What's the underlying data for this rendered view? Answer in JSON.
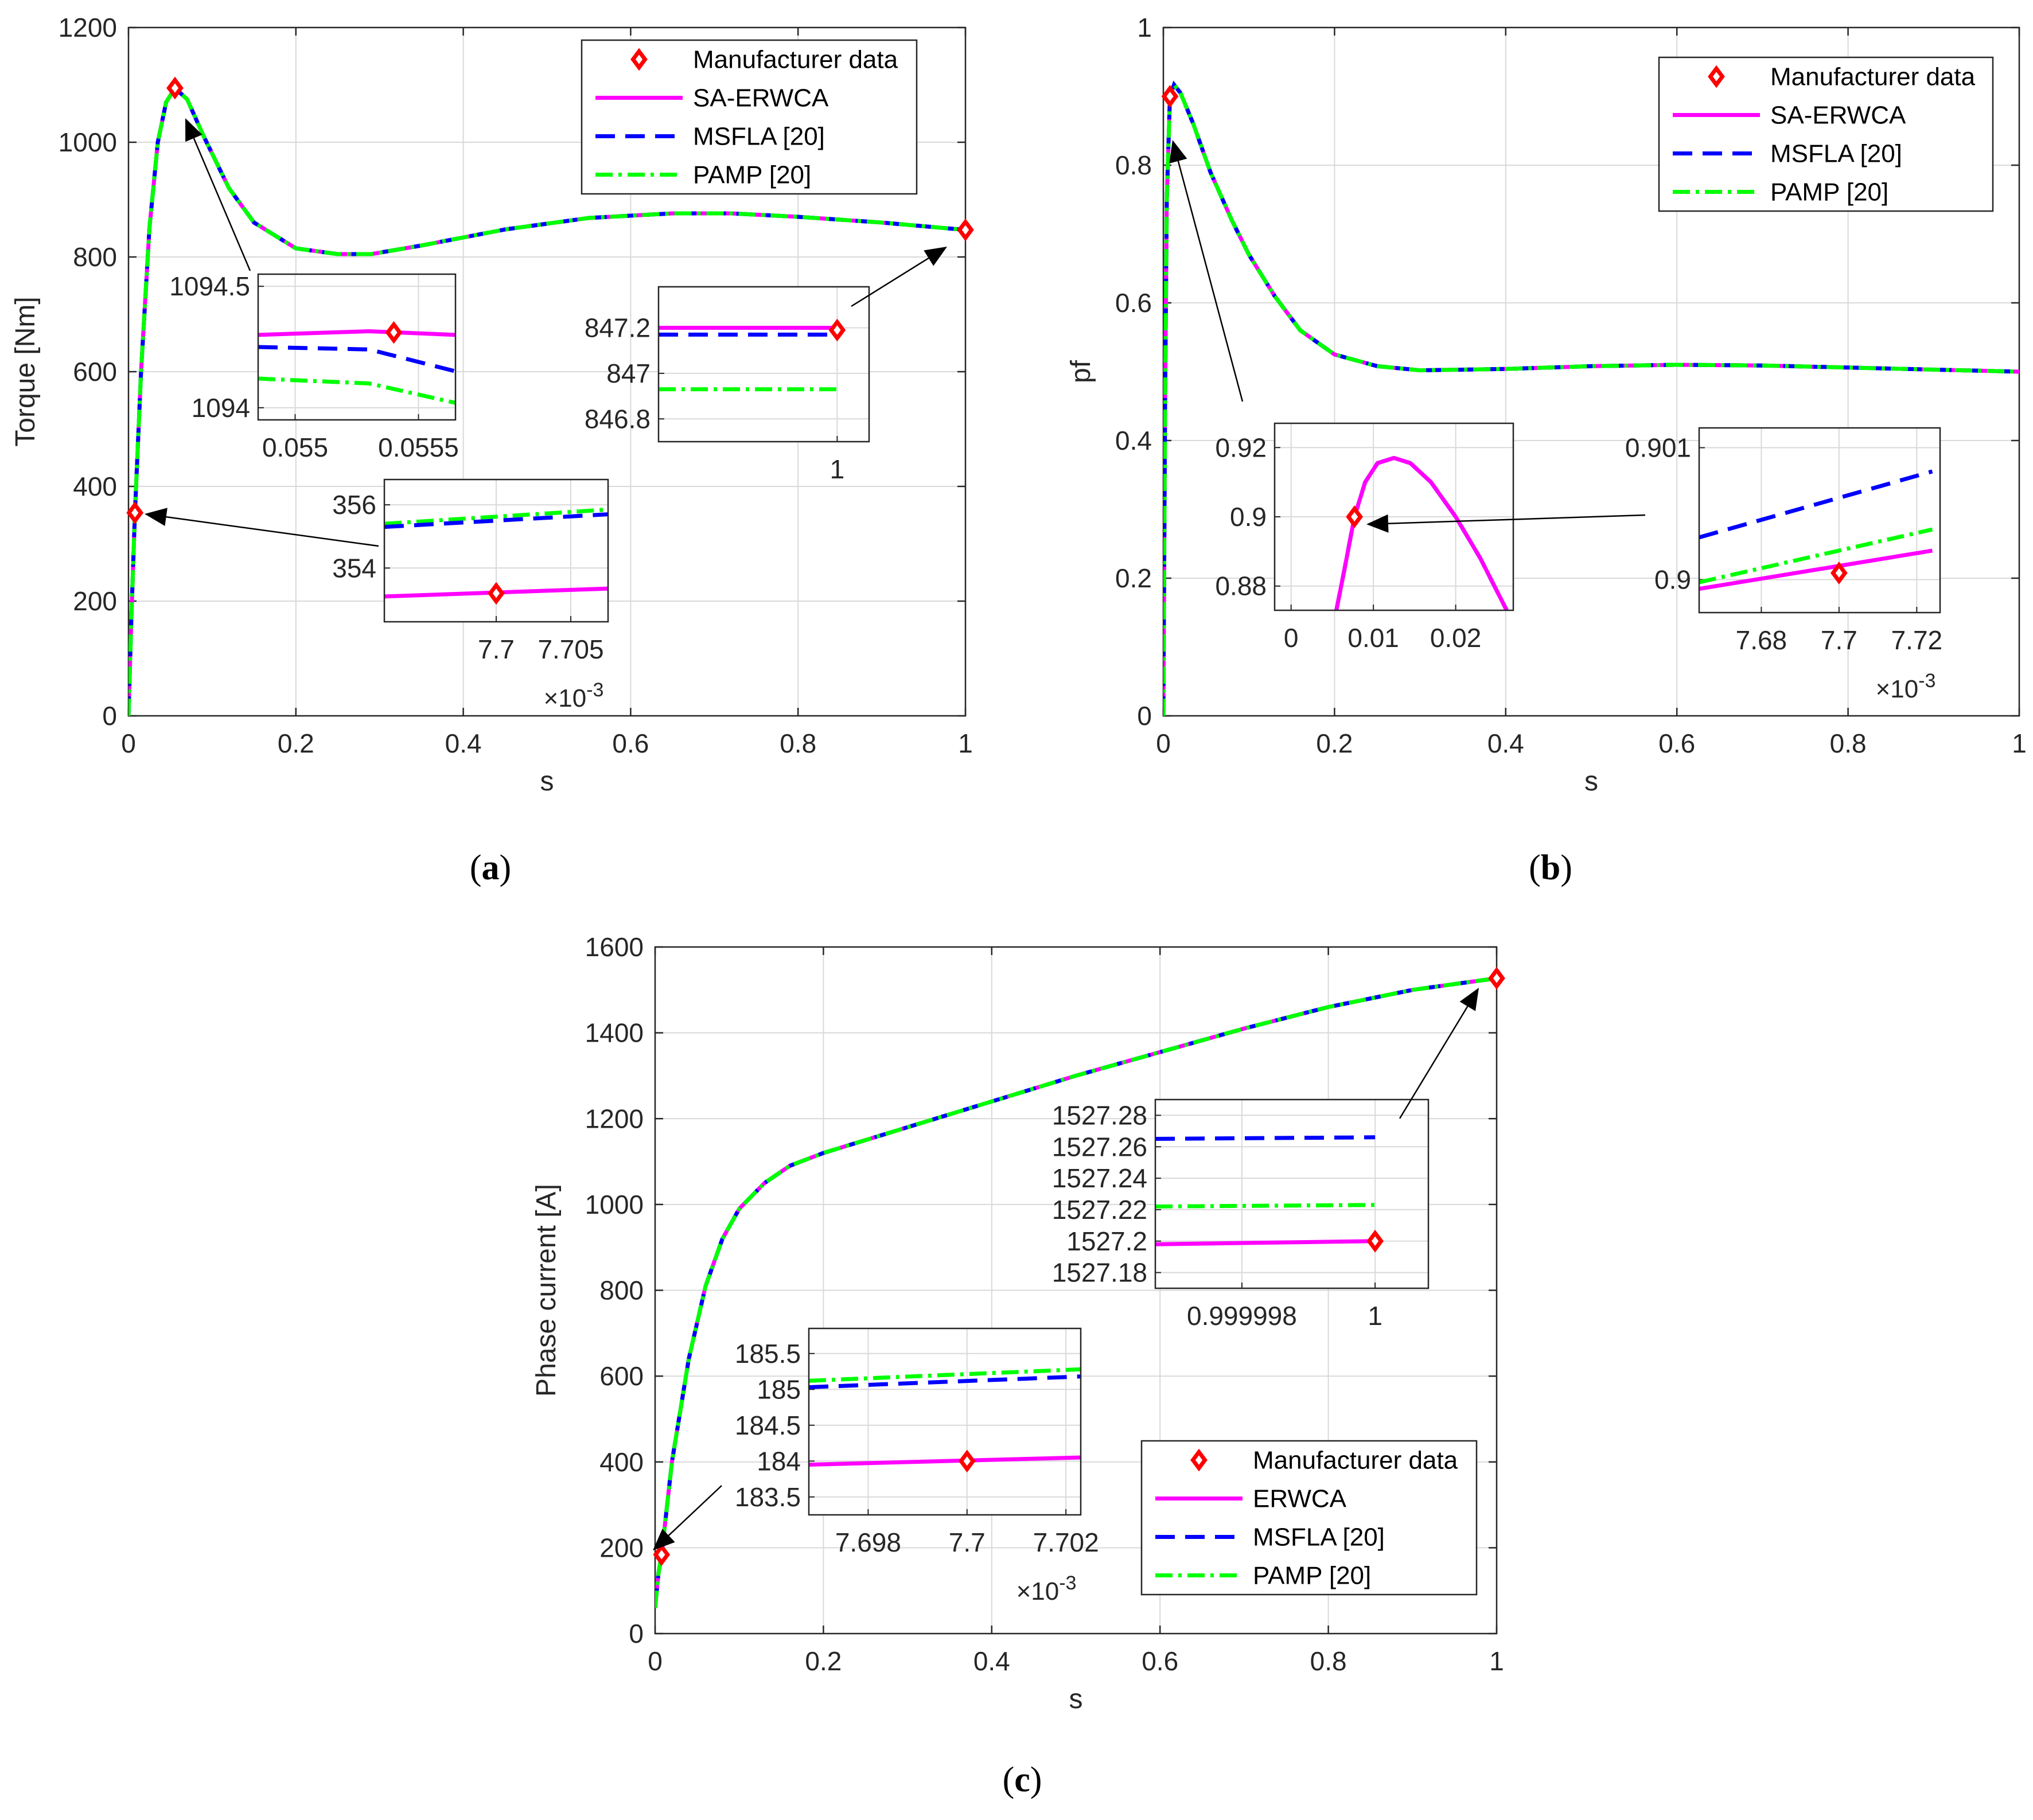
{
  "colors": {
    "manufacturer": "#ff0000",
    "sa": "#ff00ff",
    "msfla": "#0000ff",
    "pamp": "#00ff00",
    "axis": "#262626",
    "grid": "#d9d9d9"
  },
  "chart_data": [
    {
      "id": "a",
      "type": "line",
      "caption": "a",
      "xlabel": "s",
      "ylabel": "Torque [Nm]",
      "xlim": [
        0,
        1
      ],
      "ylim": [
        0,
        1200
      ],
      "xticks": [
        0,
        0.2,
        0.4,
        0.6,
        0.8,
        1
      ],
      "xtick_labels": [
        "0",
        "0.2",
        "0.4",
        "0.6",
        "0.8",
        "1"
      ],
      "yticks": [
        0,
        200,
        400,
        600,
        800,
        1000,
        1200
      ],
      "ytick_labels": [
        "0",
        "200",
        "400",
        "600",
        "800",
        "1000",
        "1200"
      ],
      "grid": true,
      "legend_position": "top-right",
      "legend": [
        "Manufacturer data",
        "SA-ERWCA",
        "MSFLA [20]",
        "PAMP [20]"
      ],
      "manufacturer_points": [
        {
          "x": 0.0077,
          "y": 354
        },
        {
          "x": 0.0555,
          "y": 1094.5
        },
        {
          "x": 1,
          "y": 847.2
        }
      ],
      "curve": {
        "x": [
          0,
          0.0035,
          0.0077,
          0.015,
          0.025,
          0.035,
          0.045,
          0.0555,
          0.07,
          0.09,
          0.12,
          0.15,
          0.2,
          0.25,
          0.29,
          0.35,
          0.45,
          0.55,
          0.65,
          0.72,
          0.8,
          0.9,
          1
        ],
        "y": [
          0,
          175,
          354,
          600,
          850,
          1000,
          1070,
          1094.5,
          1075,
          1010,
          920,
          860,
          815,
          805,
          805,
          820,
          848,
          868,
          876,
          876,
          870,
          860,
          847.2
        ]
      },
      "series": [
        {
          "name": "Manufacturer data",
          "key": "manufacturer"
        },
        {
          "name": "SA-ERWCA",
          "key": "sa"
        },
        {
          "name": "MSFLA [20]",
          "key": "msfla"
        },
        {
          "name": "PAMP [20]",
          "key": "pamp"
        }
      ],
      "insets": [
        {
          "id": "a1",
          "xlim": [
            0.05485,
            0.05565
          ],
          "ylim": [
            1093.95,
            1094.55
          ],
          "xtick_labels": [
            "0.055",
            "0.0555"
          ],
          "xticks": [
            0.055,
            0.0555
          ],
          "ytick_labels": [
            "1094",
            "1094.5"
          ],
          "yticks": [
            1094,
            1094.5
          ],
          "multiplier": "",
          "lines": {
            "sa": [
              [
                0.05485,
                1094.3
              ],
              [
                0.0553,
                1094.315
              ],
              [
                0.05565,
                1094.3
              ]
            ],
            "msfla": [
              [
                0.05485,
                1094.25
              ],
              [
                0.0553,
                1094.24
              ],
              [
                0.05565,
                1094.15
              ]
            ],
            "pamp": [
              [
                0.05485,
                1094.12
              ],
              [
                0.0553,
                1094.1
              ],
              [
                0.05565,
                1094.02
              ]
            ]
          },
          "point": [
            0.0554,
            1094.31
          ]
        },
        {
          "id": "a2",
          "xlim": [
            0.99972,
            1.00005
          ],
          "ylim": [
            846.7,
            847.38
          ],
          "xtick_labels": [
            "1"
          ],
          "xticks": [
            1
          ],
          "ytick_labels": [
            "846.8",
            "847",
            "847.2"
          ],
          "yticks": [
            846.8,
            847,
            847.2
          ],
          "multiplier": "",
          "lines": {
            "sa": [
              [
                0.99972,
                847.2
              ],
              [
                1,
                847.2
              ]
            ],
            "msfla": [
              [
                0.99972,
                847.17
              ],
              [
                1,
                847.17
              ]
            ],
            "pamp": [
              [
                0.99972,
                846.93
              ],
              [
                1,
                846.93
              ]
            ]
          },
          "point": [
            1,
            847.19
          ]
        },
        {
          "id": "a3",
          "xlim": [
            0.0076925,
            0.0077075
          ],
          "ylim": [
            352.3,
            356.8
          ],
          "xtick_labels": [
            "7.7",
            "7.705"
          ],
          "xticks": [
            0.0077,
            0.007705
          ],
          "ytick_labels": [
            "354",
            "356"
          ],
          "yticks": [
            354,
            356
          ],
          "multiplier": "×10⁻³",
          "lines": {
            "sa": [
              [
                0.0076925,
                353.1
              ],
              [
                0.0077075,
                353.35
              ]
            ],
            "msfla": [
              [
                0.0076925,
                355.3
              ],
              [
                0.0077075,
                355.7
              ]
            ],
            "pamp": [
              [
                0.0076925,
                355.4
              ],
              [
                0.0077075,
                355.85
              ]
            ]
          },
          "point": [
            0.0077,
            353.2
          ]
        }
      ]
    },
    {
      "id": "b",
      "type": "line",
      "caption": "b",
      "xlabel": "s",
      "ylabel": "pf",
      "xlim": [
        0,
        1
      ],
      "ylim": [
        0,
        1
      ],
      "xticks": [
        0,
        0.2,
        0.4,
        0.6,
        0.8,
        1
      ],
      "xtick_labels": [
        "0",
        "0.2",
        "0.4",
        "0.6",
        "0.8",
        "1"
      ],
      "yticks": [
        0,
        0.2,
        0.4,
        0.6,
        0.8,
        1
      ],
      "ytick_labels": [
        "0",
        "0.2",
        "0.4",
        "0.6",
        "0.8",
        "1"
      ],
      "grid": true,
      "legend_position": "top-right",
      "legend": [
        "Manufacturer data",
        "SA-ERWCA",
        "MSFLA [20]",
        "PAMP [20]"
      ],
      "manufacturer_points": [
        {
          "x": 0.0077,
          "y": 0.9
        }
      ],
      "curve": {
        "x": [
          0,
          0.002,
          0.004,
          0.0077,
          0.0125,
          0.02,
          0.035,
          0.055,
          0.08,
          0.1,
          0.13,
          0.16,
          0.2,
          0.25,
          0.3,
          0.4,
          0.5,
          0.6,
          0.7,
          0.8,
          0.9,
          1
        ],
        "y": [
          0,
          0.45,
          0.75,
          0.9,
          0.917,
          0.905,
          0.86,
          0.79,
          0.72,
          0.67,
          0.61,
          0.56,
          0.525,
          0.508,
          0.502,
          0.504,
          0.508,
          0.51,
          0.509,
          0.506,
          0.503,
          0.5
        ]
      },
      "series": [
        {
          "name": "Manufacturer data",
          "key": "manufacturer"
        },
        {
          "name": "SA-ERWCA",
          "key": "sa"
        },
        {
          "name": "MSFLA [20]",
          "key": "msfla"
        },
        {
          "name": "PAMP [20]",
          "key": "pamp"
        }
      ],
      "insets": [
        {
          "id": "b1",
          "xlim": [
            -0.002,
            0.027
          ],
          "ylim": [
            0.873,
            0.927
          ],
          "xtick_labels": [
            "0",
            "0.01",
            "0.02"
          ],
          "xticks": [
            0,
            0.01,
            0.02
          ],
          "ytick_labels": [
            "0.88",
            "0.9",
            "0.92"
          ],
          "yticks": [
            0.88,
            0.9,
            0.92
          ],
          "multiplier": "",
          "lines": {
            "sa": [
              [
                0.0055,
                0.873
              ],
              [
                0.0065,
                0.885
              ],
              [
                0.0077,
                0.9
              ],
              [
                0.009,
                0.91
              ],
              [
                0.0105,
                0.9155
              ],
              [
                0.0125,
                0.917
              ],
              [
                0.0145,
                0.9155
              ],
              [
                0.017,
                0.91
              ],
              [
                0.02,
                0.9
              ],
              [
                0.023,
                0.888
              ],
              [
                0.0262,
                0.873
              ]
            ],
            "msfla": [
              [
                0.0055,
                0.873
              ],
              [
                0.0065,
                0.885
              ],
              [
                0.0077,
                0.9
              ],
              [
                0.009,
                0.91
              ],
              [
                0.0105,
                0.9155
              ],
              [
                0.0125,
                0.917
              ],
              [
                0.0145,
                0.9155
              ],
              [
                0.017,
                0.91
              ],
              [
                0.02,
                0.9
              ],
              [
                0.023,
                0.888
              ],
              [
                0.0262,
                0.873
              ]
            ],
            "pamp": [
              [
                0.0055,
                0.873
              ],
              [
                0.0065,
                0.885
              ],
              [
                0.0077,
                0.9
              ],
              [
                0.009,
                0.91
              ],
              [
                0.0105,
                0.9155
              ],
              [
                0.0125,
                0.917
              ],
              [
                0.0145,
                0.9155
              ],
              [
                0.017,
                0.91
              ],
              [
                0.02,
                0.9
              ],
              [
                0.023,
                0.888
              ],
              [
                0.0262,
                0.873
              ]
            ]
          },
          "point": [
            0.0077,
            0.9
          ]
        },
        {
          "id": "b2",
          "xlim": [
            0.007664,
            0.007726
          ],
          "ylim": [
            0.89975,
            0.90115
          ],
          "xtick_labels": [
            "7.68",
            "7.7",
            "7.72"
          ],
          "xticks": [
            0.00768,
            0.0077,
            0.00772
          ],
          "ytick_labels": [
            "0.9",
            "0.901"
          ],
          "yticks": [
            0.9,
            0.901
          ],
          "multiplier": "×10⁻³",
          "lines": {
            "sa": [
              [
                0.007664,
                0.89993
              ],
              [
                0.007724,
                0.90022
              ]
            ],
            "msfla": [
              [
                0.007664,
                0.90032
              ],
              [
                0.007724,
                0.90082
              ]
            ],
            "pamp": [
              [
                0.007664,
                0.89998
              ],
              [
                0.007724,
                0.90038
              ]
            ]
          },
          "point": [
            0.0077,
            0.90005
          ]
        }
      ]
    },
    {
      "id": "c",
      "type": "line",
      "caption": "c",
      "xlabel": "s",
      "ylabel": "Phase current [A]",
      "xlim": [
        0,
        1
      ],
      "ylim": [
        0,
        1600
      ],
      "xticks": [
        0,
        0.2,
        0.4,
        0.6,
        0.8,
        1
      ],
      "xtick_labels": [
        "0",
        "0.2",
        "0.4",
        "0.6",
        "0.8",
        "1"
      ],
      "yticks": [
        0,
        200,
        400,
        600,
        800,
        1000,
        1200,
        1400,
        1600
      ],
      "ytick_labels": [
        "0",
        "200",
        "400",
        "600",
        "800",
        "1000",
        "1200",
        "1400",
        "1600"
      ],
      "grid": true,
      "legend_position": "bottom-right",
      "legend": [
        "Manufacturer data",
        "ERWCA",
        "MSFLA [20]",
        "PAMP [20]"
      ],
      "manufacturer_points": [
        {
          "x": 0.0077,
          "y": 184
        },
        {
          "x": 1,
          "y": 1527.2
        }
      ],
      "curve": {
        "x": [
          0,
          0.004,
          0.0077,
          0.02,
          0.04,
          0.06,
          0.08,
          0.1,
          0.13,
          0.16,
          0.2,
          0.3,
          0.4,
          0.5,
          0.6,
          0.7,
          0.8,
          0.9,
          1
        ],
        "y": [
          60,
          140,
          184,
          400,
          640,
          810,
          920,
          990,
          1050,
          1090,
          1120,
          1180,
          1240,
          1300,
          1355,
          1410,
          1460,
          1500,
          1527.2
        ]
      },
      "series": [
        {
          "name": "Manufacturer data",
          "key": "manufacturer"
        },
        {
          "name": "ERWCA",
          "key": "sa"
        },
        {
          "name": "MSFLA [20]",
          "key": "msfla"
        },
        {
          "name": "PAMP [20]",
          "key": "pamp"
        }
      ],
      "insets": [
        {
          "id": "c1",
          "xlim": [
            0.9999967,
            1.0000008
          ],
          "ylim": [
            1527.17,
            1527.29
          ],
          "xtick_labels": [
            "0.999998",
            "1"
          ],
          "xticks": [
            0.999998,
            1
          ],
          "ytick_labels": [
            "1527.18",
            "1527.2",
            "1527.22",
            "1527.24",
            "1527.26",
            "1527.28"
          ],
          "yticks": [
            1527.18,
            1527.2,
            1527.22,
            1527.24,
            1527.26,
            1527.28
          ],
          "multiplier": "",
          "lines": {
            "sa": [
              [
                0.9999967,
                1527.198
              ],
              [
                1,
                1527.2
              ]
            ],
            "msfla": [
              [
                0.9999967,
                1527.265
              ],
              [
                1,
                1527.266
              ]
            ],
            "pamp": [
              [
                0.9999967,
                1527.222
              ],
              [
                1,
                1527.223
              ]
            ]
          },
          "point": [
            1,
            1527.2
          ]
        },
        {
          "id": "c2",
          "xlim": [
            0.0076968,
            0.0077023
          ],
          "ylim": [
            183.25,
            185.85
          ],
          "xtick_labels": [
            "7.698",
            "7.7",
            "7.702"
          ],
          "xticks": [
            0.007698,
            0.0077,
            0.007702
          ],
          "ytick_labels": [
            "183.5",
            "184",
            "184.5",
            "185",
            "185.5"
          ],
          "yticks": [
            183.5,
            184,
            184.5,
            185,
            185.5
          ],
          "multiplier": "×10⁻³",
          "lines": {
            "sa": [
              [
                0.0076968,
                183.95
              ],
              [
                0.0077023,
                184.05
              ]
            ],
            "msfla": [
              [
                0.0076968,
                185.03
              ],
              [
                0.0077023,
                185.18
              ]
            ],
            "pamp": [
              [
                0.0076968,
                185.12
              ],
              [
                0.0077023,
                185.28
              ]
            ]
          },
          "point": [
            0.0077,
            184.0
          ]
        }
      ]
    }
  ]
}
